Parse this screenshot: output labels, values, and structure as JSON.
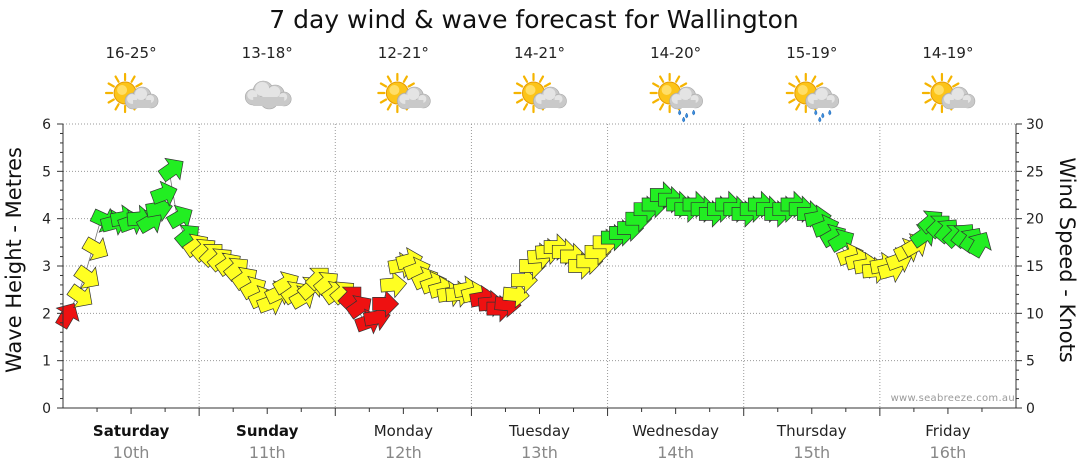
{
  "chart_data": {
    "type": "line",
    "title": "7 day wind & wave forecast for Wallington",
    "ylabel": "Wave Height - Metres",
    "y2label": "Wind Speed - Knots",
    "ylim": [
      0,
      6
    ],
    "y2lim": [
      0,
      30
    ],
    "yticks": [
      "0",
      "1",
      "2",
      "3",
      "4",
      "5",
      "6"
    ],
    "y2ticks": [
      "0",
      "5",
      "10",
      "15",
      "20",
      "25",
      "30"
    ],
    "credit": "www.seabreeze.com.au",
    "days": [
      {
        "name": "Saturday",
        "date": "10th",
        "temp": "16-25°",
        "icon": "sun-cloud-icon",
        "bold": true
      },
      {
        "name": "Sunday",
        "date": "11th",
        "temp": "13-18°",
        "icon": "cloud-icon",
        "bold": true
      },
      {
        "name": "Monday",
        "date": "12th",
        "temp": "12-21°",
        "icon": "sun-cloud-icon",
        "bold": false
      },
      {
        "name": "Tuesday",
        "date": "13th",
        "temp": "14-21°",
        "icon": "sun-cloud-icon",
        "bold": false
      },
      {
        "name": "Wednesday",
        "date": "14th",
        "temp": "14-20°",
        "icon": "sun-cloud-rain-icon",
        "bold": false
      },
      {
        "name": "Thursday",
        "date": "15th",
        "temp": "15-19°",
        "icon": "sun-cloud-rain-icon",
        "bold": false
      },
      {
        "name": "Friday",
        "date": "16th",
        "temp": "14-19°",
        "icon": "sun-cloud-icon",
        "bold": false
      }
    ],
    "colors": {
      "green": "#22ee22",
      "yellow": "#ffff22",
      "red": "#ee1111",
      "grid": "#9a9a9a"
    },
    "series": [
      {
        "name": "Wind speed (knots) and direction",
        "x_units": "days from start",
        "points": [
          {
            "x": 0.02,
            "y": 9.5,
            "dir": -60,
            "c": "red"
          },
          {
            "x": 0.11,
            "y": 12,
            "dir": 35,
            "c": "yellow"
          },
          {
            "x": 0.16,
            "y": 14,
            "dir": 35,
            "c": "yellow"
          },
          {
            "x": 0.22,
            "y": 17,
            "dir": 30,
            "c": "yellow"
          },
          {
            "x": 0.28,
            "y": 20,
            "dir": 25,
            "c": "green"
          },
          {
            "x": 0.35,
            "y": 19.5,
            "dir": -15,
            "c": "green"
          },
          {
            "x": 0.42,
            "y": 20,
            "dir": -10,
            "c": "green"
          },
          {
            "x": 0.48,
            "y": 19.5,
            "dir": -20,
            "c": "green"
          },
          {
            "x": 0.54,
            "y": 20,
            "dir": -5,
            "c": "green"
          },
          {
            "x": 0.62,
            "y": 19.5,
            "dir": -30,
            "c": "green"
          },
          {
            "x": 0.68,
            "y": 21,
            "dir": -10,
            "c": "green"
          },
          {
            "x": 0.72,
            "y": 22.5,
            "dir": -20,
            "c": "green"
          },
          {
            "x": 0.78,
            "y": 25,
            "dir": -35,
            "c": "green"
          },
          {
            "x": 0.84,
            "y": 20,
            "dir": -30,
            "c": "green"
          },
          {
            "x": 0.9,
            "y": 18,
            "dir": -40,
            "c": "green"
          },
          {
            "x": 0.96,
            "y": 17,
            "dir": -35,
            "c": "yellow"
          },
          {
            "x": 1.02,
            "y": 16.5,
            "dir": -40,
            "c": "yellow"
          },
          {
            "x": 1.08,
            "y": 16,
            "dir": -45,
            "c": "yellow"
          },
          {
            "x": 1.14,
            "y": 15.5,
            "dir": -40,
            "c": "yellow"
          },
          {
            "x": 1.2,
            "y": 15,
            "dir": -35,
            "c": "yellow"
          },
          {
            "x": 1.26,
            "y": 14.5,
            "dir": -40,
            "c": "yellow"
          },
          {
            "x": 1.32,
            "y": 13.5,
            "dir": -35,
            "c": "yellow"
          },
          {
            "x": 1.38,
            "y": 12.5,
            "dir": -30,
            "c": "yellow"
          },
          {
            "x": 1.44,
            "y": 11.5,
            "dir": -25,
            "c": "yellow"
          },
          {
            "x": 1.5,
            "y": 11,
            "dir": -20,
            "c": "yellow"
          },
          {
            "x": 1.56,
            "y": 12,
            "dir": -25,
            "c": "yellow"
          },
          {
            "x": 1.62,
            "y": 13,
            "dir": -30,
            "c": "yellow"
          },
          {
            "x": 1.68,
            "y": 12,
            "dir": -35,
            "c": "yellow"
          },
          {
            "x": 1.74,
            "y": 11.5,
            "dir": -30,
            "c": "yellow"
          },
          {
            "x": 1.8,
            "y": 12.5,
            "dir": -40,
            "c": "yellow"
          },
          {
            "x": 1.86,
            "y": 13.5,
            "dir": -45,
            "c": "yellow"
          },
          {
            "x": 1.92,
            "y": 13,
            "dir": -40,
            "c": "yellow"
          },
          {
            "x": 1.98,
            "y": 12,
            "dir": -35,
            "c": "yellow"
          },
          {
            "x": 2.04,
            "y": 12,
            "dir": -40,
            "c": "yellow"
          },
          {
            "x": 2.1,
            "y": 11.5,
            "dir": -45,
            "c": "red"
          },
          {
            "x": 2.16,
            "y": 10.5,
            "dir": -35,
            "c": "red"
          },
          {
            "x": 2.22,
            "y": 9,
            "dir": -20,
            "c": "red"
          },
          {
            "x": 2.28,
            "y": 9.5,
            "dir": -10,
            "c": "red"
          },
          {
            "x": 2.34,
            "y": 11,
            "dir": 0,
            "c": "red"
          },
          {
            "x": 2.4,
            "y": 13,
            "dir": -5,
            "c": "yellow"
          },
          {
            "x": 2.46,
            "y": 15,
            "dir": -10,
            "c": "yellow"
          },
          {
            "x": 2.52,
            "y": 15.5,
            "dir": -15,
            "c": "yellow"
          },
          {
            "x": 2.58,
            "y": 14.5,
            "dir": -20,
            "c": "yellow"
          },
          {
            "x": 2.64,
            "y": 13.5,
            "dir": -25,
            "c": "yellow"
          },
          {
            "x": 2.7,
            "y": 13,
            "dir": -20,
            "c": "yellow"
          },
          {
            "x": 2.76,
            "y": 12.5,
            "dir": -15,
            "c": "yellow"
          },
          {
            "x": 2.82,
            "y": 12,
            "dir": -10,
            "c": "yellow"
          },
          {
            "x": 2.88,
            "y": 12,
            "dir": -5,
            "c": "yellow"
          },
          {
            "x": 2.94,
            "y": 12.5,
            "dir": -10,
            "c": "yellow"
          },
          {
            "x": 3.0,
            "y": 12,
            "dir": -15,
            "c": "yellow"
          },
          {
            "x": 3.06,
            "y": 11.5,
            "dir": -10,
            "c": "red"
          },
          {
            "x": 3.12,
            "y": 11,
            "dir": -5,
            "c": "red"
          },
          {
            "x": 3.18,
            "y": 10.5,
            "dir": 0,
            "c": "red"
          },
          {
            "x": 3.24,
            "y": 11,
            "dir": 5,
            "c": "red"
          },
          {
            "x": 3.3,
            "y": 12,
            "dir": 5,
            "c": "yellow"
          },
          {
            "x": 3.36,
            "y": 13.5,
            "dir": 0,
            "c": "yellow"
          },
          {
            "x": 3.42,
            "y": 15,
            "dir": 0,
            "c": "yellow"
          },
          {
            "x": 3.48,
            "y": 16,
            "dir": -5,
            "c": "yellow"
          },
          {
            "x": 3.54,
            "y": 16.5,
            "dir": -5,
            "c": "yellow"
          },
          {
            "x": 3.6,
            "y": 17,
            "dir": 0,
            "c": "yellow"
          },
          {
            "x": 3.66,
            "y": 16.5,
            "dir": 0,
            "c": "yellow"
          },
          {
            "x": 3.72,
            "y": 16,
            "dir": 0,
            "c": "yellow"
          },
          {
            "x": 3.78,
            "y": 15,
            "dir": 0,
            "c": "yellow"
          },
          {
            "x": 3.84,
            "y": 15.5,
            "dir": 0,
            "c": "yellow"
          },
          {
            "x": 3.9,
            "y": 16.5,
            "dir": 0,
            "c": "yellow"
          },
          {
            "x": 3.96,
            "y": 17.5,
            "dir": 0,
            "c": "yellow"
          },
          {
            "x": 4.02,
            "y": 18,
            "dir": 0,
            "c": "green"
          },
          {
            "x": 4.08,
            "y": 18.5,
            "dir": 0,
            "c": "green"
          },
          {
            "x": 4.14,
            "y": 19,
            "dir": 0,
            "c": "green"
          },
          {
            "x": 4.2,
            "y": 20,
            "dir": 0,
            "c": "green"
          },
          {
            "x": 4.26,
            "y": 21,
            "dir": 0,
            "c": "green"
          },
          {
            "x": 4.32,
            "y": 21.5,
            "dir": 0,
            "c": "green"
          },
          {
            "x": 4.38,
            "y": 22.5,
            "dir": 0,
            "c": "green"
          },
          {
            "x": 4.44,
            "y": 22,
            "dir": 0,
            "c": "green"
          },
          {
            "x": 4.5,
            "y": 21.5,
            "dir": 0,
            "c": "green"
          },
          {
            "x": 4.56,
            "y": 21,
            "dir": 0,
            "c": "green"
          },
          {
            "x": 4.62,
            "y": 21.5,
            "dir": 0,
            "c": "green"
          },
          {
            "x": 4.68,
            "y": 21,
            "dir": 0,
            "c": "green"
          },
          {
            "x": 4.74,
            "y": 20.5,
            "dir": 0,
            "c": "green"
          },
          {
            "x": 4.8,
            "y": 21,
            "dir": 0,
            "c": "green"
          },
          {
            "x": 4.86,
            "y": 21.5,
            "dir": 0,
            "c": "green"
          },
          {
            "x": 4.92,
            "y": 21,
            "dir": 0,
            "c": "green"
          },
          {
            "x": 4.98,
            "y": 20.5,
            "dir": 0,
            "c": "green"
          },
          {
            "x": 5.04,
            "y": 21,
            "dir": 0,
            "c": "green"
          },
          {
            "x": 5.1,
            "y": 21.5,
            "dir": 0,
            "c": "green"
          },
          {
            "x": 5.16,
            "y": 21,
            "dir": 0,
            "c": "green"
          },
          {
            "x": 5.22,
            "y": 20.5,
            "dir": 0,
            "c": "green"
          },
          {
            "x": 5.28,
            "y": 21,
            "dir": 0,
            "c": "green"
          },
          {
            "x": 5.34,
            "y": 21.5,
            "dir": 0,
            "c": "green"
          },
          {
            "x": 5.4,
            "y": 21,
            "dir": 0,
            "c": "green"
          },
          {
            "x": 5.46,
            "y": 20.5,
            "dir": 0,
            "c": "green"
          },
          {
            "x": 5.52,
            "y": 20,
            "dir": -10,
            "c": "green"
          },
          {
            "x": 5.58,
            "y": 19,
            "dir": -20,
            "c": "green"
          },
          {
            "x": 5.64,
            "y": 18,
            "dir": -30,
            "c": "green"
          },
          {
            "x": 5.7,
            "y": 17.5,
            "dir": -30,
            "c": "green"
          },
          {
            "x": 5.76,
            "y": 16,
            "dir": -20,
            "c": "yellow"
          },
          {
            "x": 5.82,
            "y": 15.5,
            "dir": -15,
            "c": "yellow"
          },
          {
            "x": 5.88,
            "y": 15,
            "dir": -10,
            "c": "yellow"
          },
          {
            "x": 5.94,
            "y": 14.5,
            "dir": -5,
            "c": "yellow"
          },
          {
            "x": 6.0,
            "y": 15,
            "dir": -10,
            "c": "yellow"
          },
          {
            "x": 6.06,
            "y": 14.5,
            "dir": -15,
            "c": "yellow"
          },
          {
            "x": 6.12,
            "y": 15.5,
            "dir": -20,
            "c": "yellow"
          },
          {
            "x": 6.18,
            "y": 16.5,
            "dir": -25,
            "c": "yellow"
          },
          {
            "x": 6.24,
            "y": 17,
            "dir": -30,
            "c": "yellow"
          },
          {
            "x": 6.3,
            "y": 18,
            "dir": -35,
            "c": "green"
          },
          {
            "x": 6.36,
            "y": 19.5,
            "dir": -40,
            "c": "green"
          },
          {
            "x": 6.42,
            "y": 19,
            "dir": -45,
            "c": "green"
          },
          {
            "x": 6.48,
            "y": 18.5,
            "dir": -50,
            "c": "green"
          },
          {
            "x": 6.54,
            "y": 18,
            "dir": -45,
            "c": "green"
          },
          {
            "x": 6.6,
            "y": 18,
            "dir": -50,
            "c": "green"
          },
          {
            "x": 6.66,
            "y": 17.5,
            "dir": -55,
            "c": "green"
          },
          {
            "x": 6.72,
            "y": 17,
            "dir": -60,
            "c": "green"
          }
        ]
      }
    ]
  }
}
